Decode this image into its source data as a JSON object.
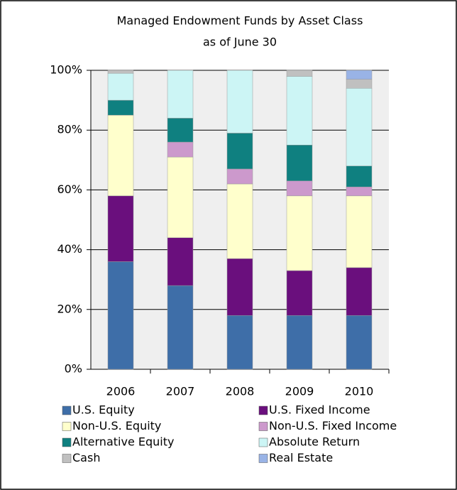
{
  "chart_data": {
    "type": "stacked_bar",
    "title": "Managed Endowment Funds by Asset Class",
    "subtitle": "as of June 30",
    "categories": [
      "2006",
      "2007",
      "2008",
      "2009",
      "2010"
    ],
    "series": [
      {
        "name": "U.S. Equity",
        "color": "#3e6ea8",
        "values": [
          36,
          28,
          18,
          18,
          18
        ]
      },
      {
        "name": "U.S. Fixed Income",
        "color": "#6a0f7d",
        "values": [
          22,
          16,
          19,
          15,
          16
        ]
      },
      {
        "name": "Non-U.S. Equity",
        "color": "#ffffcc",
        "values": [
          27,
          27,
          25,
          25,
          24
        ]
      },
      {
        "name": "Non-U.S. Fixed Income",
        "color": "#cc99cc",
        "values": [
          0,
          5,
          5,
          5,
          3
        ]
      },
      {
        "name": "Alternative Equity",
        "color": "#0f8080",
        "values": [
          5,
          8,
          12,
          12,
          7
        ]
      },
      {
        "name": "Absolute Return",
        "color": "#ccf5f5",
        "values": [
          9,
          16,
          21,
          23,
          26
        ]
      },
      {
        "name": "Cash",
        "color": "#c0c0c0",
        "values": [
          1,
          0,
          0,
          2,
          3
        ]
      },
      {
        "name": "Real Estate",
        "color": "#99b3e6",
        "values": [
          0,
          0,
          0,
          0,
          3
        ]
      }
    ],
    "ylim": [
      0,
      100
    ],
    "yticks": [
      {
        "value": 0,
        "label": "0%"
      },
      {
        "value": 20,
        "label": "20%"
      },
      {
        "value": 40,
        "label": "40%"
      },
      {
        "value": 60,
        "label": "60%"
      },
      {
        "value": 80,
        "label": "80%"
      },
      {
        "value": 100,
        "label": "100%"
      }
    ],
    "grid": true
  }
}
